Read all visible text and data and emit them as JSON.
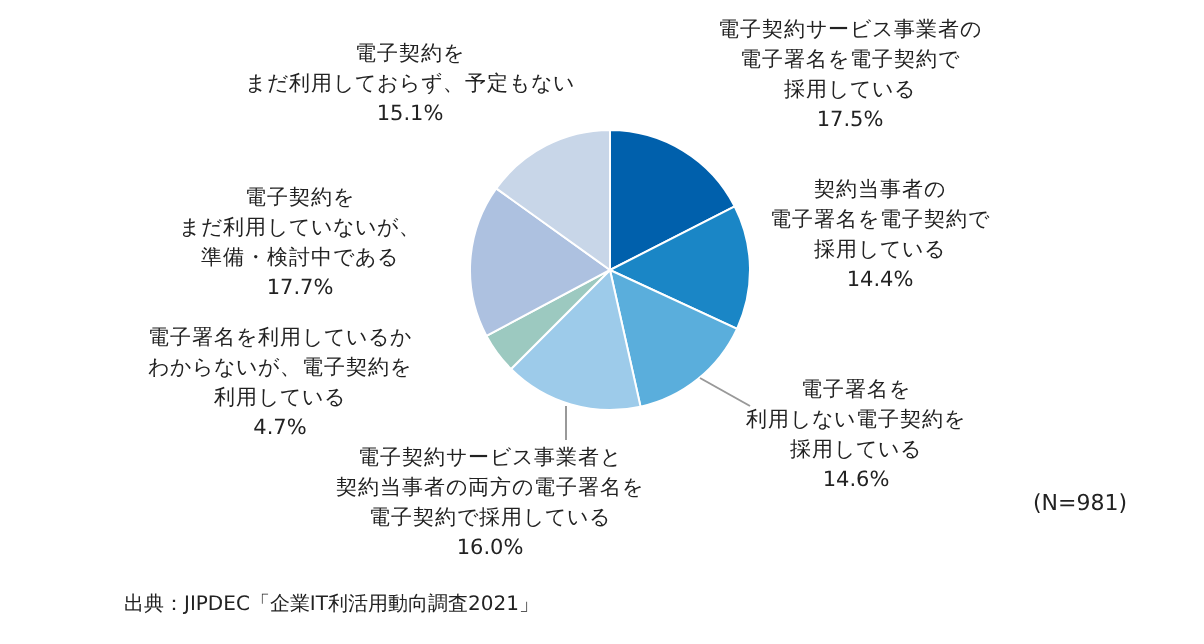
{
  "chart_data": {
    "type": "pie",
    "categories": [
      "電子契約サービス事業者の電子署名を電子契約で採用している",
      "契約当事者の電子署名を電子契約で採用している",
      "電子署名を利用しない電子契約を採用している",
      "電子契約サービス事業者と契約当事者の両方の電子署名を電子契約で採用している",
      "電子署名を利用しているかわからないが、電子契約を利用している",
      "電子契約をまだ利用していないが、準備・検討中である",
      "電子契約をまだ利用しておらず、予定もない"
    ],
    "values": [
      17.5,
      14.4,
      14.6,
      16.0,
      4.7,
      17.7,
      15.1
    ],
    "value_labels": [
      "17.5%",
      "14.4%",
      "14.6%",
      "16.0%",
      "4.7%",
      "17.7%",
      "15.1%"
    ],
    "colors": [
      "#0060ac",
      "#1a86c6",
      "#5aaedc",
      "#9dcbea",
      "#9cc9c0",
      "#adc1e0",
      "#c8d6e8"
    ],
    "annotations": [
      "(N=981)",
      "出典：JIPDEC「企業IT利活用動向調査2021」"
    ]
  }
}
